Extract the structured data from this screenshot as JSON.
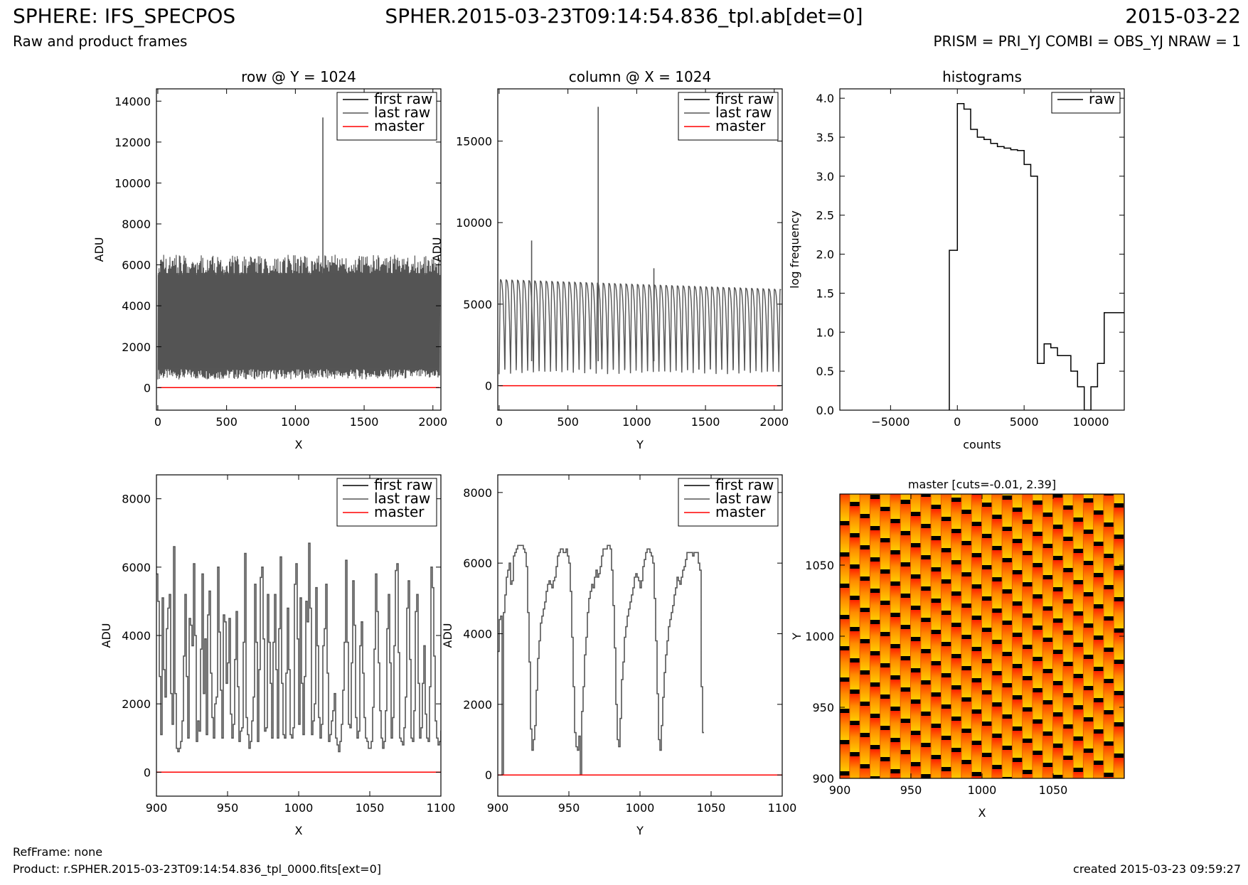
{
  "header": {
    "title": "SPHERE: IFS_SPECPOS",
    "center": "SPHER.2015-03-23T09:14:54.836_tpl.ab[det=0]",
    "date": "2015-03-22",
    "subtitle": "Raw and product frames",
    "params": "PRISM = PRI_YJ COMBI = OBS_YJ NRAW = 1"
  },
  "footer": {
    "refframe": "RefFrame: none",
    "product": "Product: r.SPHER.2015-03-23T09:14:54.836_tpl_0000.fits[ext=0]",
    "created": "created 2015-03-23 09:59:27"
  },
  "colors": {
    "first_raw": "#000000",
    "last_raw": "#555555",
    "master": "#ff0000"
  },
  "chart_data": [
    {
      "id": "row-full",
      "type": "line",
      "title": "row @ Y = 1024",
      "xlabel": "X",
      "ylabel": "ADU",
      "xlim": [
        -10,
        2058
      ],
      "ylim": [
        -1100,
        14600
      ],
      "xticks": [
        0,
        500,
        1000,
        1500,
        2000
      ],
      "yticks": [
        0,
        2000,
        4000,
        6000,
        8000,
        10000,
        12000,
        14000
      ],
      "legend": [
        "first raw",
        "last raw",
        "master"
      ],
      "legend_loc": "top-right",
      "series": [
        {
          "name": "last raw",
          "style": "band",
          "x_range": [
            0,
            2048
          ],
          "low": 700,
          "high": 6300,
          "spikes": [
            {
              "x": 1200,
              "y": 13200
            }
          ]
        },
        {
          "name": "master",
          "x": [
            0,
            2048
          ],
          "y": [
            0,
            0
          ]
        }
      ]
    },
    {
      "id": "col-full",
      "type": "line",
      "title": "column @ X = 1024",
      "xlabel": "Y",
      "ylabel": "ADU",
      "xlim": [
        -10,
        2058
      ],
      "ylim": [
        -1500,
        18200
      ],
      "xticks": [
        0,
        500,
        1000,
        1500,
        2000
      ],
      "yticks": [
        0,
        5000,
        10000,
        15000
      ],
      "legend": [
        "first raw",
        "last raw",
        "master"
      ],
      "legend_loc": "top-right",
      "series": [
        {
          "name": "last raw",
          "style": "periodic",
          "x_range": [
            0,
            2048
          ],
          "period": 41.5,
          "low": 700,
          "high": 6500,
          "spikes": [
            {
              "x": 236,
              "y": 8900
            },
            {
              "x": 720,
              "y": 17100
            },
            {
              "x": 1125,
              "y": 7200
            }
          ]
        },
        {
          "name": "master",
          "x": [
            0,
            2048
          ],
          "y": [
            0,
            0
          ]
        }
      ]
    },
    {
      "id": "hist",
      "type": "histogram",
      "title": "histograms",
      "xlabel": "counts",
      "ylabel": "log frequency",
      "xlim": [
        -8800,
        12500
      ],
      "ylim": [
        0,
        4.12
      ],
      "xticks": [
        -5000,
        0,
        5000,
        10000
      ],
      "yticks": [
        0.0,
        0.5,
        1.0,
        1.5,
        2.0,
        2.5,
        3.0,
        3.5,
        4.0
      ],
      "legend": [
        "raw"
      ],
      "legend_loc": "top-right",
      "edges": [
        -600,
        0,
        500,
        1000,
        1500,
        2000,
        2500,
        3000,
        3500,
        4000,
        4500,
        5000,
        5500,
        6000,
        6500,
        7000,
        7500,
        8000,
        8500,
        9000,
        9500,
        10000,
        10500,
        11000,
        11500,
        12000,
        12500
      ],
      "values": [
        2.05,
        3.93,
        3.86,
        3.6,
        3.5,
        3.47,
        3.42,
        3.38,
        3.36,
        3.34,
        3.33,
        3.15,
        3.0,
        0.6,
        0.85,
        0.8,
        0.7,
        0.7,
        0.5,
        0.3,
        0.0,
        0.3,
        0.6,
        1.25,
        1.25,
        1.25
      ]
    },
    {
      "id": "row-zoom",
      "type": "line",
      "title": "",
      "xlabel": "X",
      "ylabel": "ADU",
      "xlim": [
        900,
        1100
      ],
      "ylim": [
        -700,
        8700
      ],
      "xticks": [
        900,
        950,
        1000,
        1050,
        1100
      ],
      "yticks": [
        0,
        2000,
        4000,
        6000,
        8000
      ],
      "legend": [
        "first raw",
        "last raw",
        "master"
      ],
      "legend_loc": "top-right",
      "series": [
        {
          "name": "last raw",
          "style": "step",
          "x_start": 900,
          "y": [
            5800,
            5000,
            2800,
            1100,
            5100,
            3000,
            2200,
            4200,
            4800,
            5200,
            2300,
            1400,
            6600,
            2300,
            700,
            600,
            700,
            900,
            1500,
            3400,
            5200,
            2800,
            1000,
            4500,
            4300,
            3700,
            6100,
            4000,
            900,
            1500,
            1200,
            3600,
            5800,
            2300,
            3900,
            1100,
            4600,
            5300,
            2900,
            1600,
            1000,
            2000,
            2200,
            6000,
            4100,
            2400,
            1000,
            4600,
            4400,
            2600,
            3200,
            4500,
            1700,
            1000,
            1400,
            3300,
            4700,
            2500,
            900,
            1200,
            1300,
            3800,
            6400,
            1600,
            1100,
            700,
            900,
            1500,
            2200,
            5500,
            3800,
            900,
            3000,
            5700,
            6000,
            3900,
            1200,
            1300,
            5200,
            3800,
            2600,
            1000,
            3800,
            5200,
            3000,
            1000,
            4200,
            6300,
            2600,
            1100,
            1000,
            2900,
            4800,
            3000,
            1100,
            1000,
            1300,
            5500,
            6100,
            3900,
            1400,
            5100,
            2600,
            1100,
            2800,
            5000,
            4400,
            6700,
            4800,
            1100,
            1500,
            2000,
            5400,
            3700,
            1600,
            1000,
            1400,
            3700,
            4200,
            5500,
            2900,
            900,
            1100,
            1500,
            1800,
            2300,
            1000,
            800,
            600,
            900,
            1400,
            2400,
            3800,
            6200,
            3800,
            1400,
            1300,
            3200,
            5600,
            4300,
            1600,
            1000,
            1200,
            3700,
            4400,
            2900,
            1600,
            1000,
            900,
            700,
            700,
            900,
            1900,
            3600,
            5800,
            4700,
            3200,
            1800,
            1000,
            700,
            900,
            1800,
            4200,
            5200,
            3200,
            1000,
            1600,
            3700,
            5900,
            6100,
            3500,
            1000,
            900,
            800,
            1300,
            2200,
            4800,
            5600,
            3300,
            1000,
            900,
            1800,
            4700,
            5200,
            2600,
            1000,
            1300,
            2600,
            3700,
            1700,
            1000,
            900,
            2500,
            6000,
            5400,
            3400,
            1500,
            1000,
            800,
            900,
            1200,
            3500,
            2500,
            1000,
            1300,
            3600,
            1400,
            1000,
            900,
            1100
          ]
        },
        {
          "name": "master",
          "x": [
            900,
            1100
          ],
          "y": [
            0,
            0
          ]
        }
      ]
    },
    {
      "id": "col-zoom",
      "type": "line",
      "title": "",
      "xlabel": "Y",
      "ylabel": "ADU",
      "xlim": [
        900,
        1100
      ],
      "ylim": [
        -600,
        8500
      ],
      "xticks": [
        900,
        950,
        1000,
        1050,
        1100
      ],
      "yticks": [
        0,
        2000,
        4000,
        6000,
        8000
      ],
      "legend": [
        "first raw",
        "last raw",
        "master"
      ],
      "legend_loc": "top-right",
      "series": [
        {
          "name": "last raw",
          "style": "step",
          "x_start": 900,
          "y": [
            3500,
            4400,
            4500,
            0,
            4600,
            5100,
            5600,
            5800,
            6000,
            5400,
            5500,
            6200,
            6300,
            6400,
            6500,
            6500,
            6500,
            6500,
            6400,
            6300,
            5900,
            4600,
            3200,
            1300,
            700,
            1000,
            1400,
            2400,
            3300,
            3800,
            4300,
            4500,
            4700,
            4900,
            5200,
            5400,
            5500,
            5400,
            5300,
            5500,
            5600,
            5900,
            6200,
            6300,
            6400,
            6400,
            6300,
            6300,
            6400,
            6200,
            6000,
            5200,
            3900,
            2500,
            1200,
            800,
            700,
            1100,
            0,
            1800,
            2500,
            3400,
            3900,
            4600,
            5000,
            5200,
            5400,
            5300,
            5600,
            5800,
            5600,
            5700,
            5900,
            6200,
            6400,
            6400,
            6400,
            6500,
            6500,
            6400,
            5800,
            4800,
            3600,
            2000,
            1000,
            800,
            1600,
            2700,
            3200,
            3900,
            4200,
            4500,
            4700,
            4900,
            5100,
            5300,
            5600,
            5700,
            5600,
            5500,
            5300,
            5500,
            5900,
            6100,
            6300,
            6400,
            6400,
            6300,
            6200,
            6000,
            5000,
            3800,
            2300,
            1000,
            700,
            1400,
            2200,
            2900,
            3400,
            3800,
            4200,
            4400,
            4600,
            4800,
            5100,
            5300,
            5600,
            5500,
            5400,
            5600,
            5800,
            5900,
            6100,
            6300,
            6300,
            6300,
            6300,
            6200,
            6300,
            6300,
            6300,
            6000,
            5800,
            2500,
            1200
          ]
        },
        {
          "name": "master",
          "x": [
            900,
            1100
          ],
          "y": [
            0,
            0
          ]
        }
      ]
    },
    {
      "id": "master-img",
      "type": "heatmap",
      "title": "master [cuts=-0.01, 2.39]",
      "xlabel": "X",
      "ylabel": "Y",
      "xlim": [
        900,
        1100
      ],
      "ylim": [
        900,
        1100
      ],
      "xticks": [
        900,
        950,
        1000,
        1050
      ],
      "yticks": [
        900,
        950,
        1000,
        1050
      ],
      "cuts": [
        -0.01,
        2.39
      ]
    }
  ]
}
